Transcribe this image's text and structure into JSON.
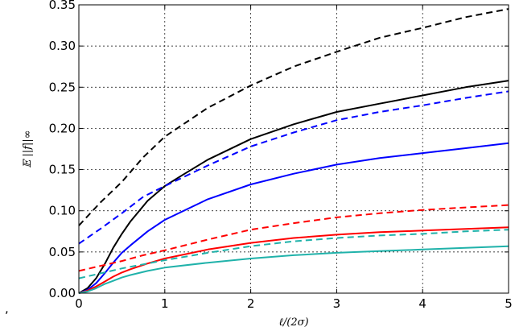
{
  "chart_data": {
    "type": "line",
    "title": "",
    "xlabel": "ℓ/(2σ)",
    "ylabel": "𝔼 ||f||∞",
    "xlim": [
      0,
      5
    ],
    "ylim": [
      0,
      0.35
    ],
    "xticks": [
      0,
      1,
      2,
      3,
      4,
      5
    ],
    "xtick_labels": [
      "0",
      "1",
      "2",
      "3",
      "4",
      "5"
    ],
    "yticks": [
      0,
      0.05,
      0.1,
      0.15,
      0.2,
      0.25,
      0.3,
      0.35
    ],
    "ytick_labels": [
      "0.00",
      "0.05",
      "0.10",
      "0.15",
      "0.20",
      "0.25",
      "0.30",
      "0.35"
    ],
    "grid": true,
    "legend": "none",
    "stray_text": ",",
    "series": [
      {
        "color": "#000000",
        "style": "dashed",
        "x": [
          0,
          0.25,
          0.5,
          0.75,
          1,
          1.5,
          2,
          2.5,
          3,
          3.5,
          4,
          4.5,
          5
        ],
        "y": [
          0.082,
          0.11,
          0.135,
          0.165,
          0.19,
          0.225,
          0.252,
          0.275,
          0.293,
          0.31,
          0.322,
          0.335,
          0.345
        ]
      },
      {
        "color": "#000000",
        "style": "solid",
        "x": [
          0,
          0.1,
          0.2,
          0.3,
          0.4,
          0.5,
          0.6,
          0.8,
          1,
          1.2,
          1.5,
          2,
          2.5,
          3,
          3.5,
          4,
          4.5,
          5
        ],
        "y": [
          0,
          0.006,
          0.018,
          0.035,
          0.055,
          0.072,
          0.087,
          0.112,
          0.13,
          0.143,
          0.162,
          0.187,
          0.205,
          0.22,
          0.23,
          0.24,
          0.25,
          0.258
        ]
      },
      {
        "color": "#0000ff",
        "style": "dashed",
        "x": [
          0,
          0.25,
          0.5,
          0.75,
          1,
          1.5,
          2,
          2.5,
          3,
          3.5,
          4,
          4.5,
          5
        ],
        "y": [
          0.06,
          0.078,
          0.097,
          0.117,
          0.13,
          0.155,
          0.178,
          0.195,
          0.21,
          0.22,
          0.228,
          0.237,
          0.245
        ]
      },
      {
        "color": "#0000ff",
        "style": "solid",
        "x": [
          0,
          0.1,
          0.2,
          0.3,
          0.4,
          0.5,
          0.6,
          0.8,
          1,
          1.5,
          2,
          2.5,
          3,
          3.5,
          4,
          4.5,
          5
        ],
        "y": [
          0,
          0.004,
          0.012,
          0.024,
          0.037,
          0.049,
          0.058,
          0.075,
          0.089,
          0.114,
          0.132,
          0.145,
          0.156,
          0.164,
          0.17,
          0.176,
          0.182
        ]
      },
      {
        "color": "#ff0000",
        "style": "dashed",
        "x": [
          0,
          0.25,
          0.5,
          0.75,
          1,
          1.5,
          2,
          2.5,
          3,
          3.5,
          4,
          4.5,
          5
        ],
        "y": [
          0.027,
          0.033,
          0.039,
          0.046,
          0.052,
          0.065,
          0.077,
          0.085,
          0.092,
          0.097,
          0.101,
          0.104,
          0.107
        ]
      },
      {
        "color": "#ff0000",
        "style": "solid",
        "x": [
          0,
          0.1,
          0.2,
          0.3,
          0.4,
          0.5,
          0.6,
          0.8,
          1,
          1.5,
          2,
          2.5,
          3,
          3.5,
          4,
          4.5,
          5
        ],
        "y": [
          0,
          0.003,
          0.008,
          0.014,
          0.02,
          0.025,
          0.029,
          0.036,
          0.042,
          0.053,
          0.061,
          0.067,
          0.071,
          0.074,
          0.076,
          0.078,
          0.08
        ]
      },
      {
        "color": "#20b2aa",
        "style": "dashed",
        "x": [
          0,
          0.25,
          0.5,
          0.75,
          1,
          1.5,
          2,
          2.5,
          3,
          3.5,
          4,
          4.5,
          5
        ],
        "y": [
          0.018,
          0.024,
          0.03,
          0.035,
          0.04,
          0.049,
          0.057,
          0.063,
          0.067,
          0.07,
          0.072,
          0.075,
          0.077
        ]
      },
      {
        "color": "#20b2aa",
        "style": "solid",
        "x": [
          0,
          0.1,
          0.2,
          0.3,
          0.4,
          0.5,
          0.6,
          0.8,
          1,
          1.5,
          2,
          2.5,
          3,
          3.5,
          4,
          4.5,
          5
        ],
        "y": [
          0,
          0.002,
          0.006,
          0.011,
          0.015,
          0.019,
          0.022,
          0.027,
          0.031,
          0.037,
          0.042,
          0.046,
          0.049,
          0.051,
          0.053,
          0.055,
          0.057
        ]
      }
    ]
  }
}
